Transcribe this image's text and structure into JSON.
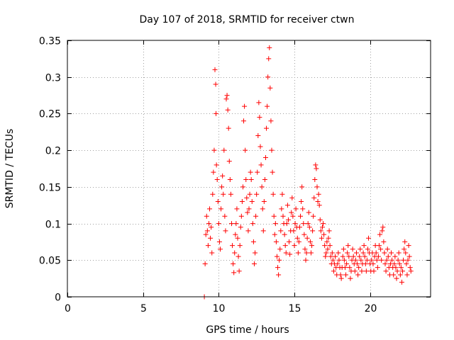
{
  "chart_data": {
    "type": "scatter",
    "title": "Day 107 of 2018, SRMTID for receiver ctwn",
    "xlabel": "GPS time / hours",
    "ylabel": "SRMTID / TECUs",
    "xlim": [
      0,
      24
    ],
    "ylim": [
      0,
      0.35
    ],
    "x_ticks": [
      0,
      5,
      10,
      15,
      20
    ],
    "y_ticks": [
      0,
      0.05,
      0.1,
      0.15,
      0.2,
      0.25,
      0.3,
      0.35
    ],
    "x_tick_labels": [
      "0",
      "5",
      "10",
      "15",
      "20"
    ],
    "y_tick_labels": [
      "0",
      "0.05",
      "0.1",
      "0.15",
      "0.2",
      "0.25",
      "0.3",
      "0.35"
    ],
    "grid": true,
    "marker": "+",
    "color": "#ff0000",
    "series": [
      {
        "name": "SRMTID",
        "points": [
          [
            9.05,
            0.0
          ],
          [
            9.1,
            0.045
          ],
          [
            9.15,
            0.085
          ],
          [
            9.2,
            0.11
          ],
          [
            9.25,
            0.09
          ],
          [
            9.3,
            0.07
          ],
          [
            9.35,
            0.1
          ],
          [
            9.4,
            0.12
          ],
          [
            9.45,
            0.08
          ],
          [
            9.5,
            0.095
          ],
          [
            9.55,
            0.06
          ],
          [
            9.6,
            0.14
          ],
          [
            9.65,
            0.17
          ],
          [
            9.7,
            0.2
          ],
          [
            9.75,
            0.31
          ],
          [
            9.8,
            0.29
          ],
          [
            9.82,
            0.25
          ],
          [
            9.85,
            0.18
          ],
          [
            9.9,
            0.16
          ],
          [
            9.95,
            0.13
          ],
          [
            10.0,
            0.1
          ],
          [
            10.05,
            0.075
          ],
          [
            10.1,
            0.065
          ],
          [
            10.15,
            0.12
          ],
          [
            10.2,
            0.15
          ],
          [
            10.25,
            0.165
          ],
          [
            10.3,
            0.14
          ],
          [
            10.35,
            0.2
          ],
          [
            10.4,
            0.11
          ],
          [
            10.45,
            0.09
          ],
          [
            10.5,
            0.27
          ],
          [
            10.55,
            0.275
          ],
          [
            10.6,
            0.255
          ],
          [
            10.65,
            0.23
          ],
          [
            10.7,
            0.185
          ],
          [
            10.75,
            0.16
          ],
          [
            10.8,
            0.14
          ],
          [
            10.85,
            0.1
          ],
          [
            10.9,
            0.07
          ],
          [
            10.95,
            0.045
          ],
          [
            11.0,
            0.033
          ],
          [
            11.05,
            0.06
          ],
          [
            11.1,
            0.085
          ],
          [
            11.15,
            0.1
          ],
          [
            11.2,
            0.12
          ],
          [
            11.25,
            0.08
          ],
          [
            11.3,
            0.055
          ],
          [
            11.35,
            0.035
          ],
          [
            11.4,
            0.07
          ],
          [
            11.45,
            0.095
          ],
          [
            11.5,
            0.11
          ],
          [
            11.55,
            0.13
          ],
          [
            11.6,
            0.15
          ],
          [
            11.65,
            0.24
          ],
          [
            11.7,
            0.26
          ],
          [
            11.75,
            0.2
          ],
          [
            11.8,
            0.16
          ],
          [
            11.85,
            0.135
          ],
          [
            11.9,
            0.115
          ],
          [
            11.95,
            0.09
          ],
          [
            12.0,
            0.12
          ],
          [
            12.05,
            0.14
          ],
          [
            12.1,
            0.17
          ],
          [
            12.15,
            0.16
          ],
          [
            12.2,
            0.13
          ],
          [
            12.25,
            0.1
          ],
          [
            12.3,
            0.075
          ],
          [
            12.35,
            0.045
          ],
          [
            12.4,
            0.06
          ],
          [
            12.45,
            0.11
          ],
          [
            12.5,
            0.14
          ],
          [
            12.55,
            0.17
          ],
          [
            12.6,
            0.22
          ],
          [
            12.65,
            0.265
          ],
          [
            12.7,
            0.245
          ],
          [
            12.75,
            0.205
          ],
          [
            12.8,
            0.18
          ],
          [
            12.85,
            0.15
          ],
          [
            12.9,
            0.12
          ],
          [
            12.95,
            0.09
          ],
          [
            13.0,
            0.13
          ],
          [
            13.05,
            0.16
          ],
          [
            13.1,
            0.19
          ],
          [
            13.15,
            0.23
          ],
          [
            13.2,
            0.26
          ],
          [
            13.25,
            0.3
          ],
          [
            13.3,
            0.325
          ],
          [
            13.35,
            0.34
          ],
          [
            13.4,
            0.285
          ],
          [
            13.45,
            0.24
          ],
          [
            13.5,
            0.2
          ],
          [
            13.55,
            0.17
          ],
          [
            13.6,
            0.14
          ],
          [
            13.65,
            0.11
          ],
          [
            13.7,
            0.085
          ],
          [
            13.75,
            0.1
          ],
          [
            13.8,
            0.075
          ],
          [
            13.85,
            0.055
          ],
          [
            13.9,
            0.04
          ],
          [
            13.95,
            0.03
          ],
          [
            14.0,
            0.05
          ],
          [
            14.05,
            0.065
          ],
          [
            14.1,
            0.09
          ],
          [
            14.15,
            0.12
          ],
          [
            14.2,
            0.14
          ],
          [
            14.25,
            0.11
          ],
          [
            14.3,
            0.1
          ],
          [
            14.35,
            0.085
          ],
          [
            14.4,
            0.07
          ],
          [
            14.45,
            0.06
          ],
          [
            14.5,
            0.1
          ],
          [
            14.55,
            0.125
          ],
          [
            14.6,
            0.105
          ],
          [
            14.65,
            0.075
          ],
          [
            14.7,
            0.058
          ],
          [
            14.75,
            0.09
          ],
          [
            14.8,
            0.115
          ],
          [
            14.85,
            0.135
          ],
          [
            14.9,
            0.11
          ],
          [
            14.95,
            0.09
          ],
          [
            15.0,
            0.07
          ],
          [
            15.05,
            0.1
          ],
          [
            15.1,
            0.12
          ],
          [
            15.15,
            0.095
          ],
          [
            15.2,
            0.08
          ],
          [
            15.25,
            0.06
          ],
          [
            15.3,
            0.075
          ],
          [
            15.35,
            0.095
          ],
          [
            15.4,
            0.11
          ],
          [
            15.45,
            0.13
          ],
          [
            15.5,
            0.15
          ],
          [
            15.55,
            0.12
          ],
          [
            15.6,
            0.1
          ],
          [
            15.65,
            0.085
          ],
          [
            15.7,
            0.065
          ],
          [
            15.75,
            0.05
          ],
          [
            15.8,
            0.06
          ],
          [
            15.85,
            0.08
          ],
          [
            15.9,
            0.1
          ],
          [
            15.95,
            0.115
          ],
          [
            16.0,
            0.095
          ],
          [
            16.05,
            0.075
          ],
          [
            16.1,
            0.06
          ],
          [
            16.15,
            0.07
          ],
          [
            16.2,
            0.09
          ],
          [
            16.25,
            0.11
          ],
          [
            16.3,
            0.135
          ],
          [
            16.35,
            0.16
          ],
          [
            16.4,
            0.18
          ],
          [
            16.45,
            0.175
          ],
          [
            16.5,
            0.15
          ],
          [
            16.55,
            0.13
          ],
          [
            16.6,
            0.14
          ],
          [
            16.65,
            0.125
          ],
          [
            16.7,
            0.105
          ],
          [
            16.75,
            0.09
          ],
          [
            16.8,
            0.08
          ],
          [
            16.85,
            0.095
          ],
          [
            16.9,
            0.1
          ],
          [
            16.95,
            0.085
          ],
          [
            17.0,
            0.07
          ],
          [
            17.05,
            0.055
          ],
          [
            17.1,
            0.06
          ],
          [
            17.15,
            0.075
          ],
          [
            17.2,
            0.065
          ],
          [
            17.25,
            0.08
          ],
          [
            17.3,
            0.09
          ],
          [
            17.35,
            0.07
          ],
          [
            17.4,
            0.055
          ],
          [
            17.45,
            0.045
          ],
          [
            17.5,
            0.06
          ],
          [
            17.55,
            0.05
          ],
          [
            17.6,
            0.035
          ],
          [
            17.65,
            0.045
          ],
          [
            17.7,
            0.055
          ],
          [
            17.75,
            0.04
          ],
          [
            17.8,
            0.03
          ],
          [
            17.85,
            0.045
          ],
          [
            17.9,
            0.06
          ],
          [
            17.95,
            0.05
          ],
          [
            18.0,
            0.04
          ],
          [
            18.05,
            0.03
          ],
          [
            18.1,
            0.025
          ],
          [
            18.15,
            0.04
          ],
          [
            18.2,
            0.055
          ],
          [
            18.25,
            0.065
          ],
          [
            18.3,
            0.05
          ],
          [
            18.35,
            0.04
          ],
          [
            18.4,
            0.03
          ],
          [
            18.45,
            0.045
          ],
          [
            18.5,
            0.06
          ],
          [
            18.55,
            0.07
          ],
          [
            18.6,
            0.055
          ],
          [
            18.65,
            0.04
          ],
          [
            18.7,
            0.025
          ],
          [
            18.75,
            0.035
          ],
          [
            18.8,
            0.05
          ],
          [
            18.85,
            0.065
          ],
          [
            18.9,
            0.055
          ],
          [
            18.95,
            0.045
          ],
          [
            19.0,
            0.035
          ],
          [
            19.05,
            0.05
          ],
          [
            19.1,
            0.06
          ],
          [
            19.15,
            0.045
          ],
          [
            19.2,
            0.03
          ],
          [
            19.25,
            0.04
          ],
          [
            19.3,
            0.055
          ],
          [
            19.35,
            0.065
          ],
          [
            19.4,
            0.05
          ],
          [
            19.45,
            0.035
          ],
          [
            19.5,
            0.045
          ],
          [
            19.55,
            0.06
          ],
          [
            19.6,
            0.07
          ],
          [
            19.65,
            0.055
          ],
          [
            19.7,
            0.045
          ],
          [
            19.75,
            0.035
          ],
          [
            19.8,
            0.05
          ],
          [
            19.85,
            0.065
          ],
          [
            19.9,
            0.08
          ],
          [
            19.95,
            0.06
          ],
          [
            20.0,
            0.045
          ],
          [
            20.05,
            0.035
          ],
          [
            20.1,
            0.05
          ],
          [
            20.15,
            0.06
          ],
          [
            20.2,
            0.045
          ],
          [
            20.25,
            0.035
          ],
          [
            20.3,
            0.055
          ],
          [
            20.35,
            0.07
          ],
          [
            20.4,
            0.06
          ],
          [
            20.45,
            0.05
          ],
          [
            20.5,
            0.04
          ],
          [
            20.55,
            0.055
          ],
          [
            20.6,
            0.07
          ],
          [
            20.65,
            0.085
          ],
          [
            20.7,
            0.065
          ],
          [
            20.75,
            0.05
          ],
          [
            20.8,
            0.09
          ],
          [
            20.85,
            0.095
          ],
          [
            20.9,
            0.075
          ],
          [
            20.95,
            0.06
          ],
          [
            21.0,
            0.045
          ],
          [
            21.05,
            0.035
          ],
          [
            21.1,
            0.05
          ],
          [
            21.15,
            0.065
          ],
          [
            21.2,
            0.055
          ],
          [
            21.25,
            0.04
          ],
          [
            21.3,
            0.03
          ],
          [
            21.35,
            0.045
          ],
          [
            21.4,
            0.06
          ],
          [
            21.45,
            0.05
          ],
          [
            21.5,
            0.04
          ],
          [
            21.55,
            0.03
          ],
          [
            21.6,
            0.045
          ],
          [
            21.65,
            0.055
          ],
          [
            21.7,
            0.04
          ],
          [
            21.75,
            0.025
          ],
          [
            21.8,
            0.035
          ],
          [
            21.85,
            0.05
          ],
          [
            21.9,
            0.06
          ],
          [
            21.95,
            0.045
          ],
          [
            22.0,
            0.03
          ],
          [
            22.05,
            0.04
          ],
          [
            22.1,
            0.02
          ],
          [
            22.15,
            0.035
          ],
          [
            22.2,
            0.05
          ],
          [
            22.25,
            0.065
          ],
          [
            22.3,
            0.075
          ],
          [
            22.35,
            0.06
          ],
          [
            22.4,
            0.045
          ],
          [
            22.45,
            0.03
          ],
          [
            22.5,
            0.05
          ],
          [
            22.55,
            0.07
          ],
          [
            22.6,
            0.055
          ],
          [
            22.65,
            0.04
          ],
          [
            22.7,
            0.035
          ]
        ]
      }
    ]
  }
}
